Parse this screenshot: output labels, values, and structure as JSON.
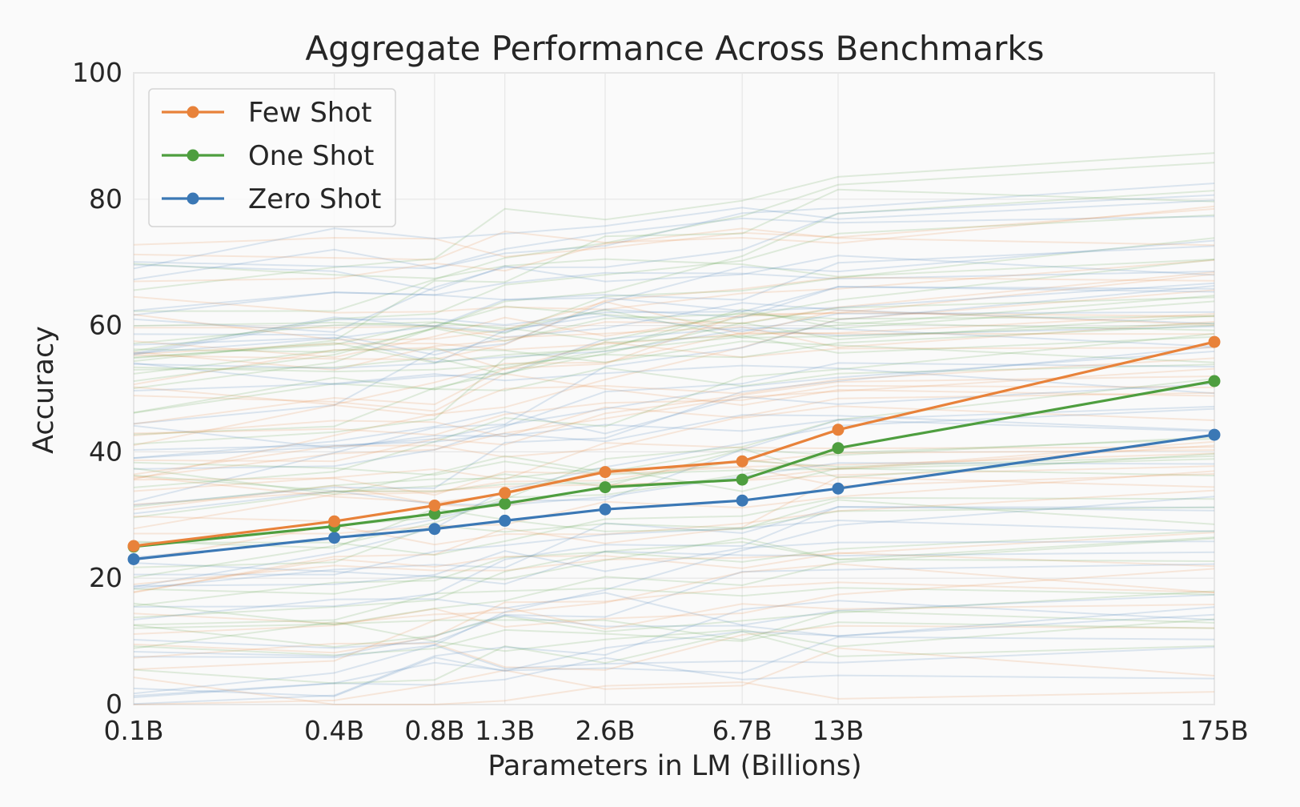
{
  "chart_data": {
    "type": "line",
    "title": "Aggregate Performance Across Benchmarks",
    "xlabel": "Parameters in LM (Billions)",
    "ylabel": "Accuracy",
    "x": [
      0.1,
      0.4,
      0.8,
      1.3,
      2.6,
      6.7,
      13,
      175
    ],
    "x_tick_labels": [
      "0.1B",
      "0.4B",
      "0.8B",
      "1.3B",
      "2.6B",
      "6.7B",
      "13B",
      "175B"
    ],
    "y_ticks": [
      0,
      20,
      40,
      60,
      80,
      100
    ],
    "ylim": [
      0,
      100
    ],
    "grid": true,
    "legend": "top-left",
    "series": [
      {
        "name": "Few Shot",
        "color": "#e8823a",
        "values": [
          25.1,
          29.0,
          31.5,
          33.5,
          36.8,
          38.5,
          43.5,
          57.4
        ]
      },
      {
        "name": "One Shot",
        "color": "#4e9e3f",
        "values": [
          25.0,
          28.2,
          30.2,
          31.8,
          34.4,
          35.6,
          40.6,
          51.2
        ]
      },
      {
        "name": "Zero Shot",
        "color": "#3b78b5",
        "values": [
          23.0,
          26.4,
          27.8,
          29.1,
          30.9,
          32.3,
          34.2,
          42.7
        ]
      }
    ]
  }
}
